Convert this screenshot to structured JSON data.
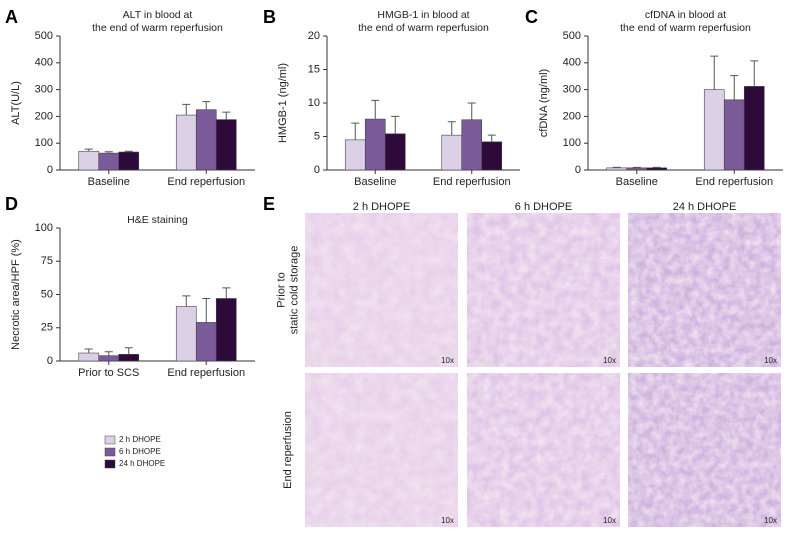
{
  "panel_labels": [
    "A",
    "B",
    "C",
    "D",
    "E"
  ],
  "chart_data": [
    {
      "type": "bar",
      "title": [
        "ALT in blood at",
        "the end of warm reperfusion"
      ],
      "ylabel": "ALT(U/L)",
      "categories": [
        "Baseline",
        "End reperfusion"
      ],
      "series": [
        {
          "name": "2 h DHOPE",
          "color": "#dcd0e6",
          "values": [
            70,
            205
          ],
          "errors": [
            8,
            40
          ]
        },
        {
          "name": "6 h DHOPE",
          "color": "#7b5a9a",
          "values": [
            63,
            225
          ],
          "errors": [
            5,
            30
          ]
        },
        {
          "name": "24 h DHOPE",
          "color": "#2e0a3a",
          "values": [
            67,
            188
          ],
          "errors": [
            3,
            28
          ]
        }
      ],
      "ylim": [
        0,
        500
      ],
      "yticks": [
        0,
        100,
        200,
        300,
        400,
        500
      ]
    },
    {
      "type": "bar",
      "title": [
        "HMGB-1 in blood at",
        "the end of warm reperfusion"
      ],
      "ylabel": "HMGB-1 (ng/ml)",
      "categories": [
        "Baseline",
        "End reperfusion"
      ],
      "series": [
        {
          "name": "2 h DHOPE",
          "color": "#dcd0e6",
          "values": [
            4.5,
            5.2
          ],
          "errors": [
            2.5,
            2
          ]
        },
        {
          "name": "6 h DHOPE",
          "color": "#7b5a9a",
          "values": [
            7.6,
            7.5
          ],
          "errors": [
            2.8,
            2.5
          ]
        },
        {
          "name": "24 h DHOPE",
          "color": "#2e0a3a",
          "values": [
            5.4,
            4.2
          ],
          "errors": [
            2.6,
            1
          ]
        }
      ],
      "ylim": [
        0,
        20
      ],
      "yticks": [
        0,
        5,
        10,
        15,
        20
      ]
    },
    {
      "type": "bar",
      "title": [
        "cfDNA in blood at",
        "the end of warm reperfusion"
      ],
      "ylabel": "cfDNA (ng/ml)",
      "categories": [
        "Baseline",
        "End reperfusion"
      ],
      "series": [
        {
          "name": "2 h DHOPE",
          "color": "#dcd0e6",
          "values": [
            8,
            300
          ],
          "errors": [
            2,
            125
          ]
        },
        {
          "name": "6 h DHOPE",
          "color": "#7b5a9a",
          "values": [
            8,
            262
          ],
          "errors": [
            2,
            90
          ]
        },
        {
          "name": "24 h DHOPE",
          "color": "#2e0a3a",
          "values": [
            8,
            312
          ],
          "errors": [
            2,
            95
          ]
        }
      ],
      "ylim": [
        0,
        500
      ],
      "yticks": [
        0,
        100,
        200,
        300,
        400,
        500
      ]
    },
    {
      "type": "bar",
      "title": [
        "H&E staining"
      ],
      "ylabel": "Necrotic area/HPF (%)",
      "categories": [
        "Prior to SCS",
        "End reperfusion"
      ],
      "series": [
        {
          "name": "2 h DHOPE",
          "color": "#dcd0e6",
          "values": [
            6,
            41
          ],
          "errors": [
            3,
            8
          ]
        },
        {
          "name": "6 h DHOPE",
          "color": "#7b5a9a",
          "values": [
            4,
            29
          ],
          "errors": [
            3,
            18
          ]
        },
        {
          "name": "24 h DHOPE",
          "color": "#2e0a3a",
          "values": [
            5,
            47
          ],
          "errors": [
            5,
            8
          ]
        }
      ],
      "ylim": [
        0,
        100
      ],
      "yticks": [
        0,
        25,
        50,
        75,
        100
      ]
    }
  ],
  "histology": {
    "columns": [
      "2 h DHOPE",
      "6 h DHOPE",
      "24 h DHOPE"
    ],
    "rows": [
      [
        "Prior to",
        "static cold storage"
      ],
      [
        "End reperfusion"
      ]
    ],
    "magnification": "10x"
  }
}
